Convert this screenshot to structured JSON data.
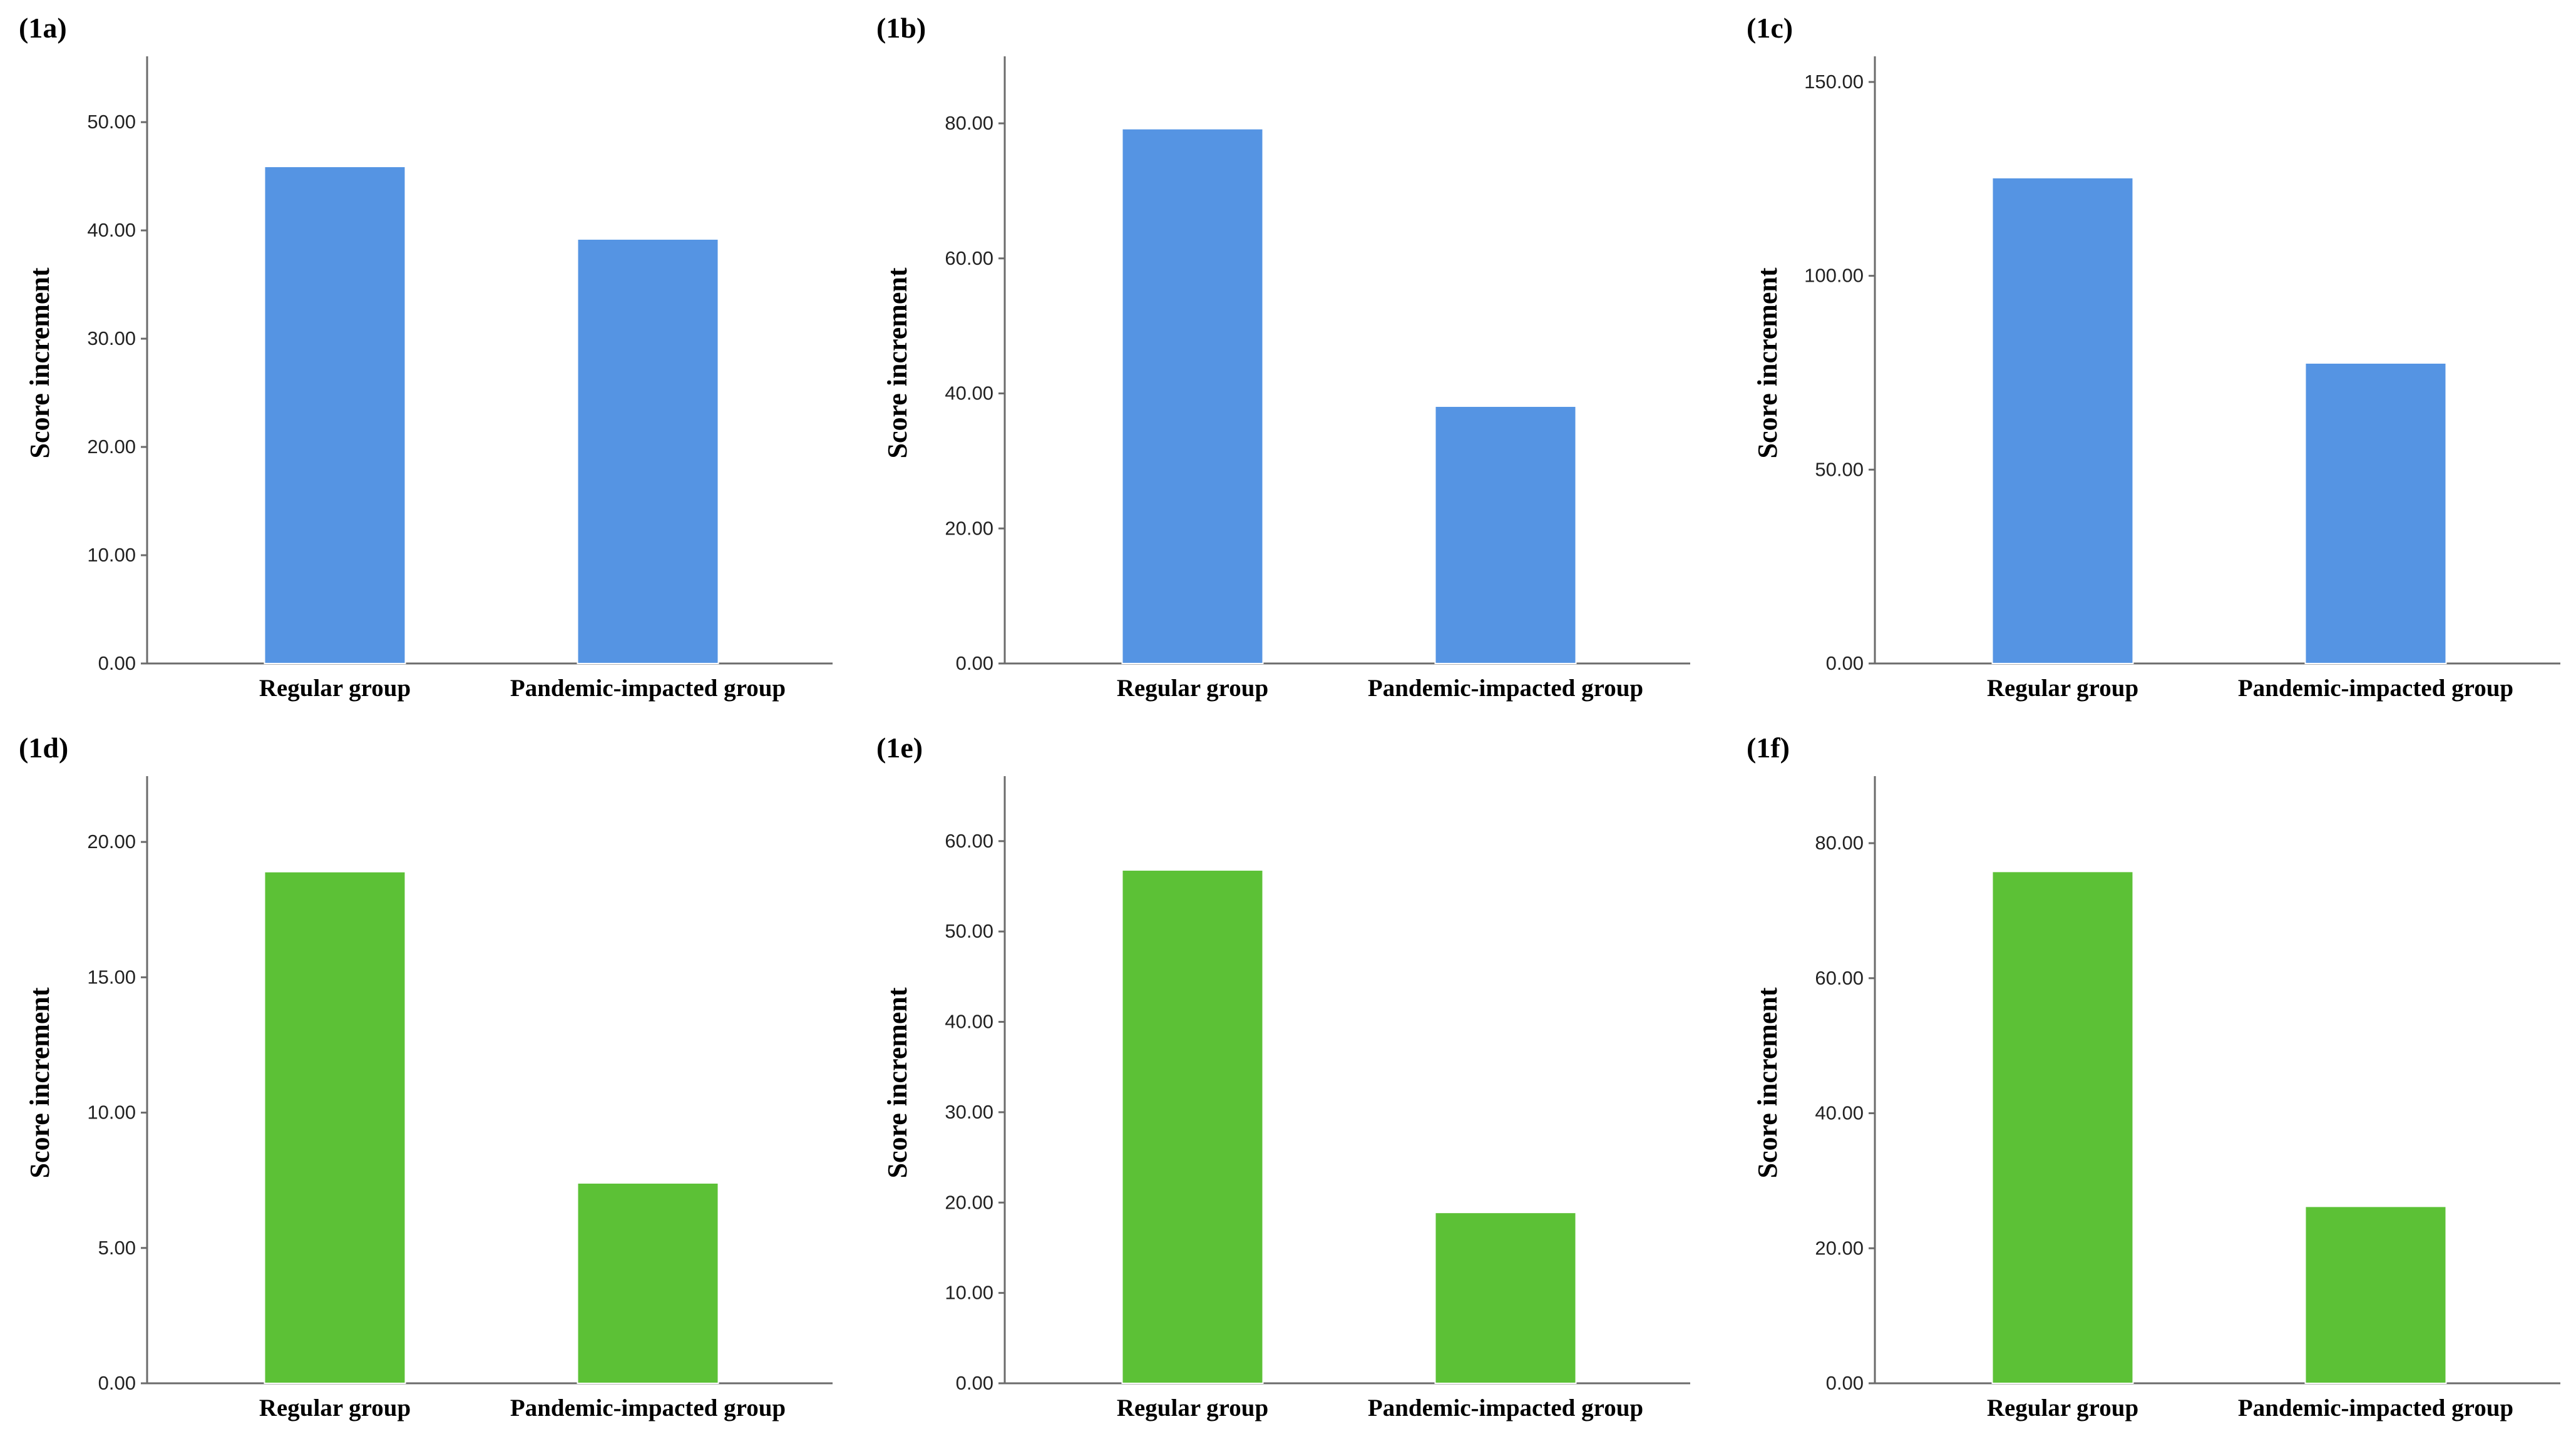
{
  "chart_data": [
    {
      "label": "(1a)",
      "type": "bar",
      "categories": [
        "Regular group",
        "Pandemic-impacted group"
      ],
      "values": [
        45.9,
        39.2
      ],
      "ylabel": "Score increment",
      "yticks": [
        "0.00",
        "10.00",
        "20.00",
        "30.00",
        "40.00",
        "50.00"
      ],
      "ylim": [
        0,
        55.5
      ],
      "color": "#5594E3"
    },
    {
      "label": "(1b)",
      "type": "bar",
      "categories": [
        "Regular group",
        "Pandemic-impacted group"
      ],
      "values": [
        79.2,
        38.1
      ],
      "ylabel": "Score increment",
      "yticks": [
        "0.00",
        "20.00",
        "40.00",
        "60.00",
        "80.00"
      ],
      "ylim": [
        0,
        89
      ],
      "color": "#5594E3"
    },
    {
      "label": "(1c)",
      "type": "bar",
      "categories": [
        "Regular group",
        "Pandemic-impacted group"
      ],
      "values": [
        125.3,
        77.5
      ],
      "ylabel": "Score increment",
      "yticks": [
        "0.00",
        "50.00",
        "100.00",
        "150.00"
      ],
      "ylim": [
        0,
        155
      ],
      "color": "#5594E3"
    },
    {
      "label": "(1d)",
      "type": "bar",
      "categories": [
        "Regular group",
        "Pandemic-impacted group"
      ],
      "values": [
        18.9,
        7.4
      ],
      "ylabel": "Score increment",
      "yticks": [
        "0.00",
        "5.00",
        "10.00",
        "15.00",
        "20.00"
      ],
      "ylim": [
        0,
        22.2
      ],
      "color": "#5CC136"
    },
    {
      "label": "(1e)",
      "type": "bar",
      "categories": [
        "Regular group",
        "Pandemic-impacted group"
      ],
      "values": [
        56.8,
        18.9
      ],
      "ylabel": "Score increment",
      "yticks": [
        "0.00",
        "10.00",
        "20.00",
        "30.00",
        "40.00",
        "50.00",
        "60.00"
      ],
      "ylim": [
        0,
        66.5
      ],
      "color": "#5CC136"
    },
    {
      "label": "(1f)",
      "type": "bar",
      "categories": [
        "Regular group",
        "Pandemic-impacted group"
      ],
      "values": [
        75.8,
        26.2
      ],
      "ylabel": "Score increment",
      "yticks": [
        "0.00",
        "20.00",
        "40.00",
        "60.00",
        "80.00"
      ],
      "ylim": [
        0,
        89
      ],
      "color": "#5CC136"
    }
  ]
}
